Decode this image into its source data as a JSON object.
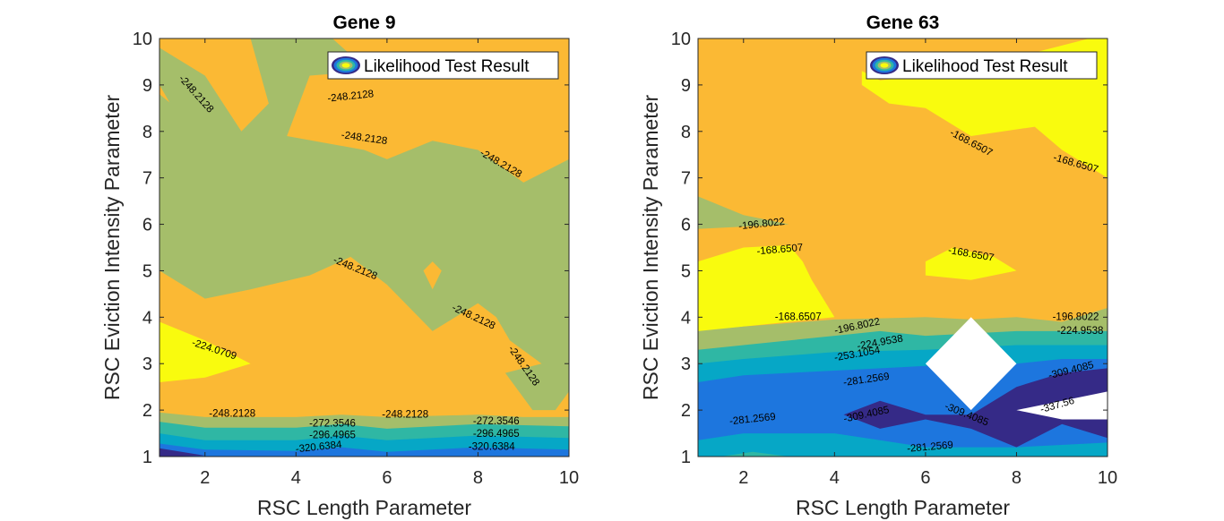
{
  "colors": {
    "yellow": "#f9fb0e",
    "orange": "#fbb934",
    "olive": "#a5be6a",
    "teal": "#2fb7a4",
    "cyan": "#06a7c6",
    "blue": "#1d76de",
    "navy": "#352a87",
    "white": "#ffffff"
  },
  "chart_data": [
    {
      "type": "contour",
      "title": "Gene 9",
      "xlabel": "RSC Length Parameter",
      "ylabel": "RSC Eviction Intensity Parameter",
      "xlim": [
        1,
        10
      ],
      "ylim": [
        1,
        10
      ],
      "x_ticks": [
        "2",
        "4",
        "6",
        "8",
        "10"
      ],
      "y_ticks": [
        "1",
        "2",
        "3",
        "4",
        "5",
        "6",
        "7",
        "8",
        "9",
        "10"
      ],
      "legend": {
        "label": "Likelihood Test Result",
        "position": "top-right"
      },
      "base_color": "orange",
      "regions": [
        {
          "color": "olive",
          "points": [
            [
              1,
              9.8
            ],
            [
              2,
              9.2
            ],
            [
              2.8,
              8
            ],
            [
              3.4,
              8.6
            ],
            [
              3,
              10
            ],
            [
              4.8,
              10
            ],
            [
              5.6,
              9.3
            ],
            [
              4.3,
              9.2
            ],
            [
              3.8,
              7.9
            ],
            [
              5.5,
              7.6
            ],
            [
              6,
              7.4
            ],
            [
              7,
              7.8
            ],
            [
              8,
              7.6
            ],
            [
              9,
              6.9
            ],
            [
              10,
              7.4
            ],
            [
              10,
              2.4
            ],
            [
              9.7,
              2
            ],
            [
              9.2,
              2
            ],
            [
              8.6,
              2.8
            ],
            [
              9.4,
              3
            ],
            [
              8.7,
              3.5
            ],
            [
              8.4,
              4
            ],
            [
              8,
              4.3
            ],
            [
              7,
              3.7
            ],
            [
              6,
              4.7
            ],
            [
              5.2,
              5.3
            ],
            [
              4.3,
              4.9
            ],
            [
              3,
              4.6
            ],
            [
              2,
              4.4
            ],
            [
              1,
              5
            ],
            [
              1,
              8.8
            ],
            [
              2,
              8
            ],
            [
              2,
              7.3
            ],
            [
              1,
              9
            ]
          ]
        },
        {
          "color": "orange",
          "points": [
            [
              6.8,
              5
            ],
            [
              7,
              5.2
            ],
            [
              7.2,
              5
            ],
            [
              7,
              4.6
            ]
          ]
        },
        {
          "color": "yellow",
          "points": [
            [
              1,
              3.9
            ],
            [
              2,
              3.5
            ],
            [
              3,
              3
            ],
            [
              2,
              2.7
            ],
            [
              1,
              2.6
            ]
          ]
        },
        {
          "color": "olive",
          "points": [
            [
              1,
              1.95
            ],
            [
              2,
              1.85
            ],
            [
              4,
              1.85
            ],
            [
              5,
              1.9
            ],
            [
              6,
              1.85
            ],
            [
              8,
              1.9
            ],
            [
              9,
              1.85
            ],
            [
              10,
              1.85
            ],
            [
              10,
              1
            ],
            [
              1,
              1
            ]
          ]
        },
        {
          "color": "teal",
          "points": [
            [
              1,
              1.75
            ],
            [
              2,
              1.62
            ],
            [
              4,
              1.62
            ],
            [
              5,
              1.7
            ],
            [
              6,
              1.6
            ],
            [
              8,
              1.7
            ],
            [
              10,
              1.65
            ],
            [
              10,
              1
            ],
            [
              1,
              1
            ]
          ]
        },
        {
          "color": "cyan",
          "points": [
            [
              1,
              1.5
            ],
            [
              2,
              1.35
            ],
            [
              4,
              1.35
            ],
            [
              5,
              1.45
            ],
            [
              6,
              1.35
            ],
            [
              8,
              1.45
            ],
            [
              10,
              1.4
            ],
            [
              10,
              1
            ],
            [
              1,
              1
            ]
          ]
        },
        {
          "color": "blue",
          "points": [
            [
              1,
              1.28
            ],
            [
              2,
              1.15
            ],
            [
              4,
              1.12
            ],
            [
              5,
              1.2
            ],
            [
              6,
              1.1
            ],
            [
              8,
              1.2
            ],
            [
              10,
              1.15
            ],
            [
              10,
              1
            ],
            [
              1,
              1
            ]
          ]
        },
        {
          "color": "navy",
          "points": [
            [
              1,
              1.18
            ],
            [
              2,
              1.02
            ],
            [
              1,
              1
            ]
          ]
        }
      ],
      "contour_labels": [
        {
          "text": "-248.2128",
          "x": 1.8,
          "y": 8.8,
          "angle": 48
        },
        {
          "text": "-248.2128",
          "x": 5.2,
          "y": 8.75,
          "angle": -6
        },
        {
          "text": "-248.2128",
          "x": 5.5,
          "y": 7.85,
          "angle": 8
        },
        {
          "text": "-248.2128",
          "x": 8.5,
          "y": 7.3,
          "angle": 30
        },
        {
          "text": "-248.2128",
          "x": 5.3,
          "y": 5.05,
          "angle": 22
        },
        {
          "text": "-248.2128",
          "x": 7.9,
          "y": 4.0,
          "angle": 25
        },
        {
          "text": "-248.2128",
          "x": 9.0,
          "y": 2.95,
          "angle": 55
        },
        {
          "text": "-224.0709",
          "x": 2.2,
          "y": 3.3,
          "angle": 18
        },
        {
          "text": "-248.2128",
          "x": 2.6,
          "y": 1.92,
          "angle": 0
        },
        {
          "text": "-248.2128",
          "x": 6.4,
          "y": 1.9,
          "angle": 0
        },
        {
          "text": "-272.3546",
          "x": 4.8,
          "y": 1.7,
          "angle": 0
        },
        {
          "text": "-296.4965",
          "x": 4.8,
          "y": 1.45,
          "angle": 0
        },
        {
          "text": "-320.6384",
          "x": 4.5,
          "y": 1.2,
          "angle": -6
        },
        {
          "text": "-272.3546",
          "x": 8.4,
          "y": 1.75,
          "angle": 0
        },
        {
          "text": "-296.4965",
          "x": 8.4,
          "y": 1.48,
          "angle": 0
        },
        {
          "text": "-320.6384",
          "x": 8.3,
          "y": 1.2,
          "angle": 0
        }
      ]
    },
    {
      "type": "contour",
      "title": "Gene 63",
      "xlabel": "RSC Length Parameter",
      "ylabel": "RSC Eviction Intensity Parameter",
      "xlim": [
        1,
        10
      ],
      "ylim": [
        1,
        10
      ],
      "x_ticks": [
        "2",
        "4",
        "6",
        "8",
        "10"
      ],
      "y_ticks": [
        "1",
        "2",
        "3",
        "4",
        "5",
        "6",
        "7",
        "8",
        "9",
        "10"
      ],
      "legend": {
        "label": "Likelihood Test Result",
        "position": "top-right"
      },
      "base_color": "orange",
      "regions": [
        {
          "color": "yellow",
          "points": [
            [
              4.6,
              9.3
            ],
            [
              5,
              9.1
            ],
            [
              6,
              9.2
            ],
            [
              7,
              9.5
            ],
            [
              8,
              9.6
            ],
            [
              9.6,
              10
            ],
            [
              10,
              10
            ],
            [
              10,
              7
            ],
            [
              9,
              7.6
            ],
            [
              8.4,
              8.1
            ],
            [
              7,
              7.9
            ],
            [
              6,
              8.5
            ],
            [
              5.2,
              8.6
            ],
            [
              4.6,
              9
            ]
          ]
        },
        {
          "color": "olive",
          "points": [
            [
              1,
              6.6
            ],
            [
              2,
              6.2
            ],
            [
              3,
              6
            ],
            [
              1,
              5.9
            ]
          ]
        },
        {
          "color": "yellow",
          "points": [
            [
              1,
              5.2
            ],
            [
              2,
              5.5
            ],
            [
              3,
              5.55
            ],
            [
              3.3,
              5.2
            ],
            [
              3.5,
              4.8
            ],
            [
              4,
              4.0
            ],
            [
              3,
              3.9
            ],
            [
              2,
              3.8
            ],
            [
              1,
              3.6
            ]
          ]
        },
        {
          "color": "yellow",
          "points": [
            [
              6,
              5.2
            ],
            [
              6.6,
              5.5
            ],
            [
              7.5,
              5.3
            ],
            [
              8,
              5
            ],
            [
              7,
              4.8
            ],
            [
              6,
              4.9
            ]
          ]
        },
        {
          "color": "olive",
          "points": [
            [
              1,
              3.7
            ],
            [
              2,
              3.8
            ],
            [
              4,
              3.95
            ],
            [
              6,
              4
            ],
            [
              7,
              3.95
            ],
            [
              8,
              4
            ],
            [
              9,
              3.9
            ],
            [
              10,
              4.2
            ],
            [
              10,
              1
            ],
            [
              1,
              1
            ]
          ]
        },
        {
          "color": "teal",
          "points": [
            [
              1,
              3.3
            ],
            [
              2,
              3.4
            ],
            [
              4,
              3.6
            ],
            [
              5,
              3.7
            ],
            [
              6,
              3.6
            ],
            [
              8,
              3.7
            ],
            [
              10,
              3.7
            ],
            [
              10,
              1
            ],
            [
              1,
              1
            ]
          ]
        },
        {
          "color": "cyan",
          "points": [
            [
              1,
              3.0
            ],
            [
              2,
              3.1
            ],
            [
              4,
              3.25
            ],
            [
              6,
              3.3
            ],
            [
              8,
              3.4
            ],
            [
              10,
              3.4
            ],
            [
              10,
              1
            ],
            [
              1,
              1
            ]
          ]
        },
        {
          "color": "blue",
          "points": [
            [
              1,
              2.6
            ],
            [
              2,
              2.75
            ],
            [
              4,
              2.85
            ],
            [
              6,
              2.95
            ],
            [
              8,
              3
            ],
            [
              9,
              3.1
            ],
            [
              10,
              3.1
            ],
            [
              10,
              1
            ],
            [
              1,
              1
            ]
          ]
        },
        {
          "color": "cyan",
          "points": [
            [
              1,
              1.35
            ],
            [
              2,
              1.5
            ],
            [
              4,
              1.5
            ],
            [
              5,
              1.35
            ],
            [
              6,
              1.2
            ],
            [
              8,
              1.2
            ],
            [
              10,
              1.3
            ],
            [
              10,
              1
            ],
            [
              1,
              1
            ]
          ]
        },
        {
          "color": "teal",
          "points": [
            [
              1.5,
              1
            ],
            [
              2.2,
              1.1
            ],
            [
              3,
              1
            ]
          ]
        },
        {
          "color": "navy",
          "points": [
            [
              4.2,
              1.9
            ],
            [
              5,
              2.2
            ],
            [
              6,
              1.9
            ],
            [
              7,
              1.9
            ],
            [
              8,
              2.5
            ],
            [
              9,
              2.8
            ],
            [
              10,
              2.9
            ],
            [
              10,
              1.4
            ],
            [
              9,
              1.7
            ],
            [
              8,
              1.2
            ],
            [
              7,
              1.6
            ],
            [
              6,
              1.8
            ],
            [
              5,
              1.6
            ]
          ]
        },
        {
          "color": "white",
          "points": [
            [
              7,
              4
            ],
            [
              8,
              3
            ],
            [
              7,
              2
            ],
            [
              6,
              3
            ]
          ]
        },
        {
          "color": "white",
          "points": [
            [
              8,
              2
            ],
            [
              10,
              2.4
            ],
            [
              10,
              1.8
            ],
            [
              9,
              1.8
            ]
          ]
        }
      ],
      "contour_labels": [
        {
          "text": "-168.6507",
          "x": 7.0,
          "y": 7.75,
          "angle": 28
        },
        {
          "text": "-168.6507",
          "x": 9.3,
          "y": 7.3,
          "angle": 16
        },
        {
          "text": "-196.8022",
          "x": 2.4,
          "y": 6.0,
          "angle": -6
        },
        {
          "text": "-168.6507",
          "x": 2.8,
          "y": 5.45,
          "angle": -5
        },
        {
          "text": "-168.6507",
          "x": 7.0,
          "y": 5.35,
          "angle": 10
        },
        {
          "text": "-168.6507",
          "x": 3.2,
          "y": 4.0,
          "angle": 0
        },
        {
          "text": "-196.8022",
          "x": 4.5,
          "y": 3.8,
          "angle": -12
        },
        {
          "text": "-224.9538",
          "x": 5.0,
          "y": 3.45,
          "angle": -10
        },
        {
          "text": "-253.1054",
          "x": 4.5,
          "y": 3.2,
          "angle": -10
        },
        {
          "text": "-281.2569",
          "x": 4.7,
          "y": 2.65,
          "angle": -8
        },
        {
          "text": "-309.4085",
          "x": 4.7,
          "y": 1.9,
          "angle": -12
        },
        {
          "text": "-309.4085",
          "x": 6.9,
          "y": 1.9,
          "angle": 22
        },
        {
          "text": "-196.8022",
          "x": 9.3,
          "y": 4.0,
          "angle": 0
        },
        {
          "text": "-224.9538",
          "x": 9.4,
          "y": 3.7,
          "angle": 0
        },
        {
          "text": "-309.4085",
          "x": 9.2,
          "y": 2.85,
          "angle": -14
        },
        {
          "text": "-337.56",
          "x": 8.9,
          "y": 2.1,
          "angle": -16
        },
        {
          "text": "-281.2569",
          "x": 2.2,
          "y": 1.8,
          "angle": -6
        },
        {
          "text": "-281.2569",
          "x": 6.1,
          "y": 1.2,
          "angle": -5
        }
      ]
    }
  ]
}
